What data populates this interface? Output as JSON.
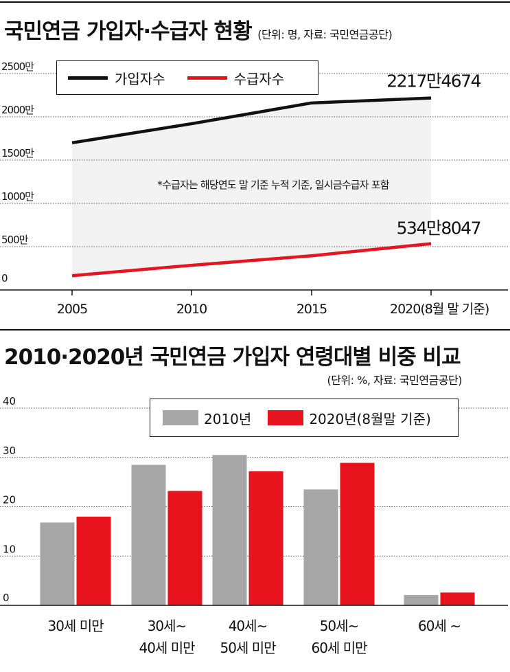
{
  "chart1": {
    "title": "국민연금 가입자·수급자 현황",
    "unit_note": "(단위: 명, 자료: 국민연금공단)",
    "annotation": "*수급자는 해당연도 말 기준 누적 기준, 일시금수급자 포함",
    "legend_position": "top-left"
  },
  "chart2": {
    "title": "2010·2020년 국민연금 가입자 연령대별 비중 비교",
    "unit_note": "(단위: %, 자료: 국민연금공단)",
    "legend_position": "top-right"
  },
  "colors": {
    "black": "#111111",
    "red": "#e8141d",
    "gray": "#a6a6a6",
    "plot_bg": "#f2f2f2"
  },
  "chart_data": [
    {
      "type": "line",
      "title": "국민연금 가입자·수급자 현황",
      "x": [
        "2005",
        "2010",
        "2015",
        "2020(8월 말 기준)"
      ],
      "y_ticks": [
        "0",
        "500만",
        "1000만",
        "1500만",
        "2000만",
        "2500만"
      ],
      "ylim": [
        0,
        25000000
      ],
      "grid": true,
      "series": [
        {
          "name": "가입자수",
          "color": "#111111",
          "values": [
            17000000,
            19200000,
            21600000,
            22174674
          ],
          "end_label": "2217만4674"
        },
        {
          "name": "수급자수",
          "color": "#e8141d",
          "values": [
            1650000,
            2850000,
            3950000,
            5348047
          ],
          "end_label": "534만8047"
        }
      ]
    },
    {
      "type": "bar",
      "title": "2010·2020년 국민연금 가입자 연령대별 비중 비교",
      "categories": [
        "30세 미만",
        "30세~\n40세 미만",
        "40세~\n50세 미만",
        "50세~\n60세 미만",
        "60세 ~"
      ],
      "y_ticks": [
        "0",
        "10",
        "20",
        "30",
        "40"
      ],
      "ylim": [
        0,
        40
      ],
      "grid": true,
      "series": [
        {
          "name": "2010년",
          "color": "#a6a6a6",
          "values": [
            16.8,
            28.5,
            30.5,
            23.5,
            2.1
          ]
        },
        {
          "name": "2020년(8월말 기준)",
          "color": "#e8141d",
          "values": [
            18.0,
            23.2,
            27.2,
            28.9,
            2.6
          ]
        }
      ]
    }
  ]
}
